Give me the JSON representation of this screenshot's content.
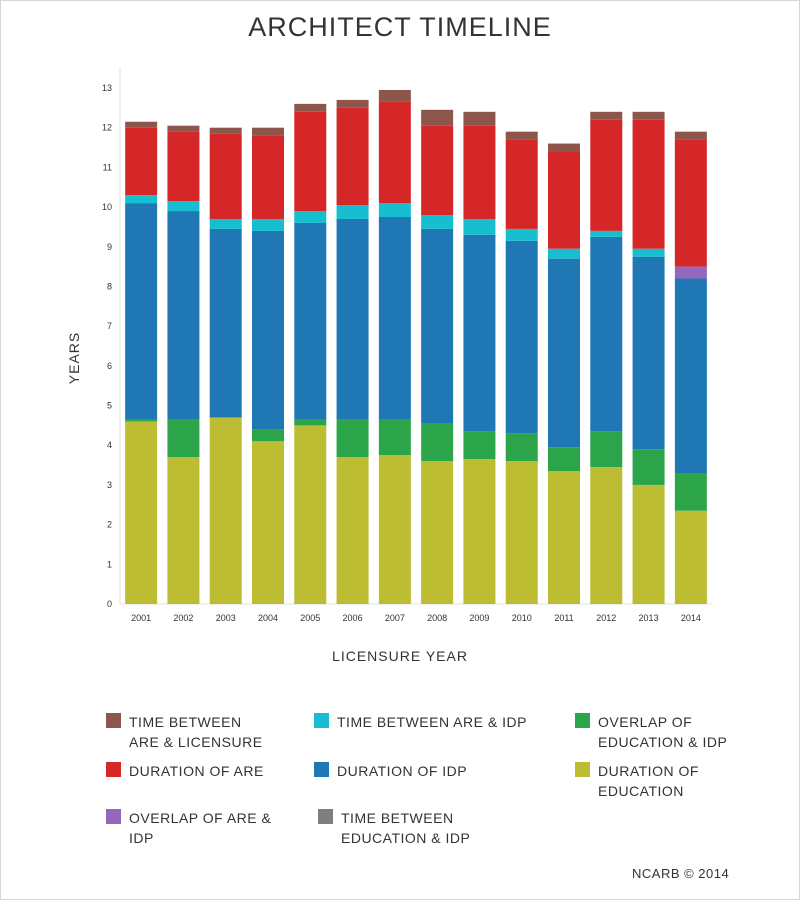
{
  "page": {
    "title": "ARCHITECT TIMELINE",
    "footer": "NCARB © 2014"
  },
  "chart_data": {
    "type": "bar",
    "stacked": true,
    "title": "ARCHITECT TIMELINE",
    "xlabel": "LICENSURE YEAR",
    "ylabel": "YEARS",
    "ylim": [
      0,
      13
    ],
    "yticks": [
      0,
      1,
      2,
      3,
      4,
      5,
      6,
      7,
      8,
      9,
      10,
      11,
      12,
      13
    ],
    "grid": false,
    "legend_position": "bottom",
    "categories": [
      "2001",
      "2002",
      "2003",
      "2004",
      "2005",
      "2006",
      "2007",
      "2008",
      "2009",
      "2010",
      "2011",
      "2012",
      "2013",
      "2014"
    ],
    "series": [
      {
        "name": "DURATION OF EDUCATION",
        "color": "#bcbd32",
        "values": [
          4.6,
          3.7,
          4.7,
          4.1,
          4.5,
          3.7,
          3.75,
          3.6,
          3.65,
          3.6,
          3.35,
          3.45,
          3.0,
          2.35
        ]
      },
      {
        "name": "OVERLAP OF EDUCATION & IDP",
        "color": "#2ca449",
        "values": [
          0.05,
          0.95,
          0.0,
          0.3,
          0.15,
          0.95,
          0.9,
          0.95,
          0.7,
          0.7,
          0.6,
          0.9,
          0.9,
          0.95
        ]
      },
      {
        "name": "DURATION OF IDP",
        "color": "#1f77b4",
        "values": [
          5.45,
          5.25,
          4.75,
          5.0,
          4.95,
          5.05,
          5.1,
          4.9,
          4.95,
          4.85,
          4.75,
          4.9,
          4.85,
          4.9
        ]
      },
      {
        "name": "OVERLAP OF ARE & IDP",
        "color": "#9467bd",
        "values": [
          0,
          0,
          0,
          0,
          0,
          0,
          0,
          0,
          0,
          0,
          0,
          0,
          0,
          0.3
        ]
      },
      {
        "name": "TIME BETWEEN ARE & IDP",
        "color": "#17becf",
        "values": [
          0.2,
          0.25,
          0.25,
          0.3,
          0.3,
          0.35,
          0.35,
          0.35,
          0.4,
          0.3,
          0.25,
          0.15,
          0.2,
          0.0
        ]
      },
      {
        "name": "DURATION OF ARE",
        "color": "#d62728",
        "values": [
          1.7,
          1.75,
          2.15,
          2.1,
          2.5,
          2.45,
          2.55,
          2.25,
          2.35,
          2.25,
          2.45,
          2.8,
          3.25,
          3.2
        ]
      },
      {
        "name": "TIME BETWEEN ARE & LICENSURE",
        "color": "#8c564b",
        "values": [
          0.15,
          0.15,
          0.15,
          0.2,
          0.2,
          0.2,
          0.3,
          0.4,
          0.35,
          0.2,
          0.2,
          0.2,
          0.2,
          0.2
        ]
      },
      {
        "name": "TIME BETWEEN EDUCATION & IDP",
        "color": "#7f7f7f",
        "values": [
          0,
          0,
          0,
          0,
          0,
          0,
          0,
          0,
          0,
          0,
          0,
          0,
          0,
          0
        ]
      }
    ]
  },
  "legend": {
    "items": [
      {
        "label": "TIME BETWEEN ARE & LICENSURE",
        "color": "#8c564b"
      },
      {
        "label": "TIME BETWEEN ARE & IDP",
        "color": "#17becf"
      },
      {
        "label": "OVERLAP OF EDUCATION & IDP",
        "color": "#2ca449"
      },
      {
        "label": "DURATION OF ARE",
        "color": "#d62728"
      },
      {
        "label": "DURATION OF IDP",
        "color": "#1f77b4"
      },
      {
        "label": "DURATION OF EDUCATION",
        "color": "#bcbd32"
      },
      {
        "label": "OVERLAP OF ARE & IDP",
        "color": "#9467bd"
      },
      {
        "label": "TIME BETWEEN EDUCATION & IDP",
        "color": "#7f7f7f"
      }
    ]
  }
}
